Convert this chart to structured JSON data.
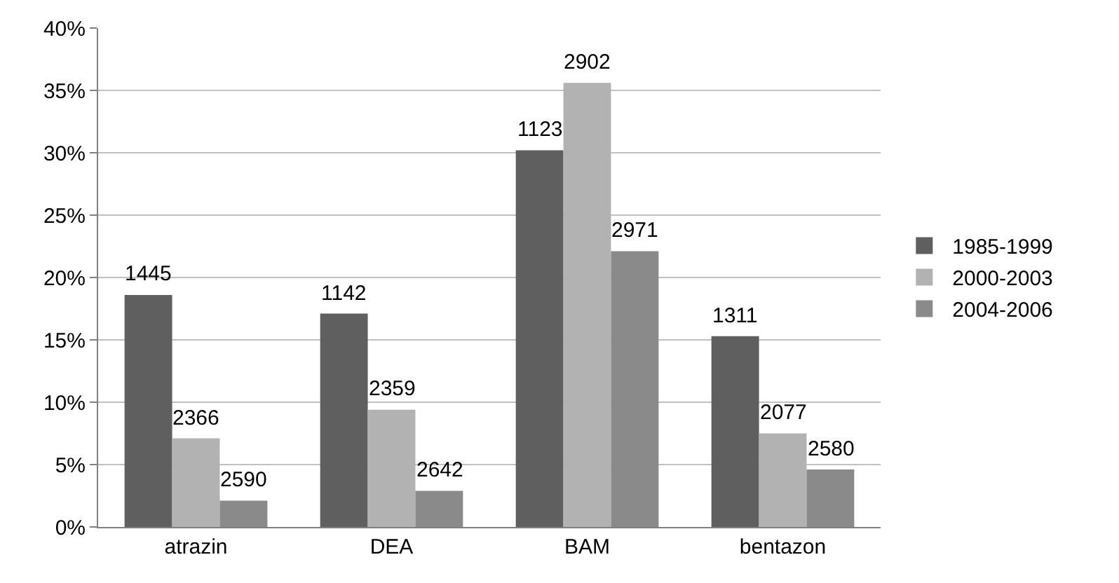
{
  "chart_data": {
    "type": "bar",
    "categories": [
      "atrazin",
      "DEA",
      "BAM",
      "bentazon"
    ],
    "series": [
      {
        "name": "1985-1999",
        "color": "#5f5f5f",
        "values": [
          18.6,
          17.1,
          30.2,
          15.3
        ]
      },
      {
        "name": "2000-2003",
        "color": "#b2b2b2",
        "values": [
          7.1,
          9.4,
          35.6,
          7.5
        ]
      },
      {
        "name": "2004-2006",
        "color": "#8a8a8a",
        "values": [
          2.1,
          2.9,
          22.1,
          4.6
        ]
      }
    ],
    "annotations": [
      "1445",
      "1142",
      "1123",
      "1311",
      "2366",
      "2359",
      "2902",
      "2077",
      "2590",
      "2642",
      "2971",
      "2580"
    ],
    "ylim": [
      0,
      40
    ],
    "yticks": [
      {
        "value": 0,
        "label": "0%"
      },
      {
        "value": 5,
        "label": "5%"
      },
      {
        "value": 10,
        "label": "10%"
      },
      {
        "value": 15,
        "label": "15%"
      },
      {
        "value": 20,
        "label": "20%"
      },
      {
        "value": 25,
        "label": "25%"
      },
      {
        "value": 30,
        "label": "30%"
      },
      {
        "value": 35,
        "label": "35%"
      },
      {
        "value": 40,
        "label": "40%"
      }
    ],
    "grid": "y",
    "legend": "right"
  }
}
